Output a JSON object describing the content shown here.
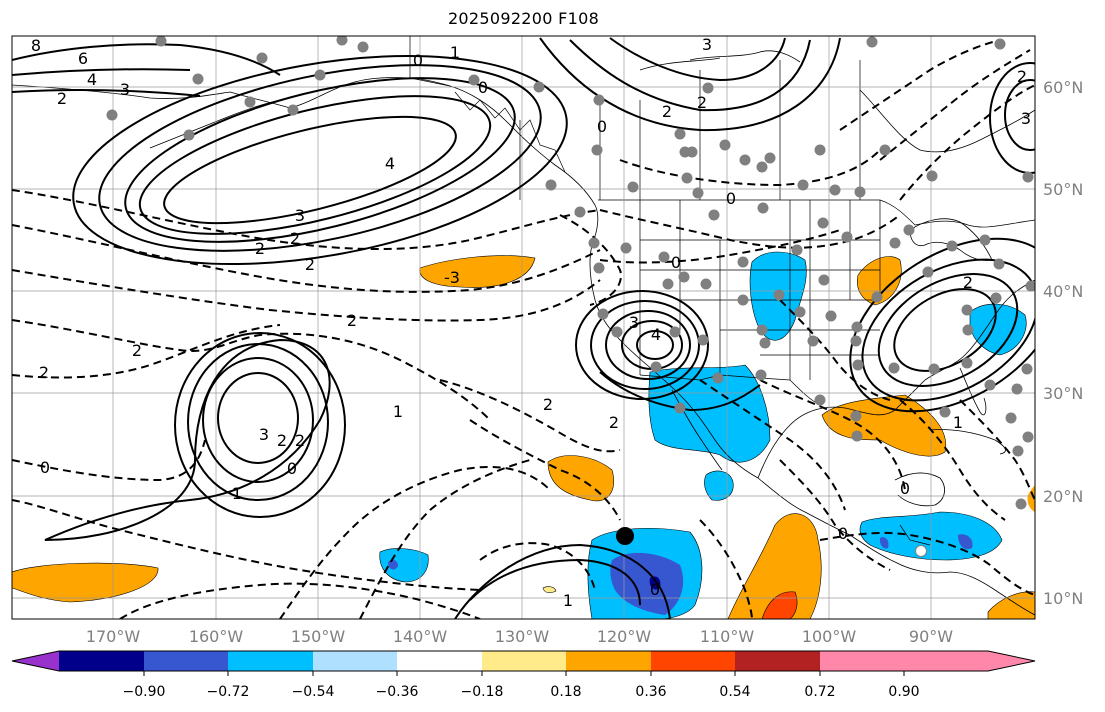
{
  "title": "2025092200 F108",
  "lon_labels": [
    "170°W",
    "160°W",
    "150°W",
    "140°W",
    "130°W",
    "120°W",
    "110°W",
    "100°W",
    "90°W"
  ],
  "lat_labels": [
    "10°N",
    "20°N",
    "30°N",
    "40°N",
    "50°N",
    "60°N"
  ],
  "colorbar": {
    "tick_labels": [
      "−0.90",
      "−0.72",
      "−0.54",
      "−0.36",
      "−0.18",
      "0.18",
      "0.36",
      "0.54",
      "0.72",
      "0.90"
    ],
    "colors": [
      "#9932cc",
      "#00008b",
      "#3657d0",
      "#00bfff",
      "#b0e0ff",
      "#ffffff",
      "#ffeb8a",
      "#ffa500",
      "#ff4500",
      "#b22222",
      "#ff88aa"
    ]
  },
  "fill_colors": {
    "neg_strong": "#00008b",
    "neg_mid": "#3657d0",
    "neg_weak": "#00bfff",
    "neg_faint": "#b0e0ff",
    "pos_weak": "#ffa500",
    "pos_mid": "#ff4500"
  },
  "contour_labels": [
    {
      "text": "8"
    },
    {
      "text": "6"
    },
    {
      "text": "4"
    },
    {
      "text": "3"
    },
    {
      "text": "2"
    },
    {
      "text": "4"
    },
    {
      "text": "3"
    },
    {
      "text": "2"
    },
    {
      "text": "2"
    },
    {
      "text": "-3"
    },
    {
      "text": "2"
    },
    {
      "text": "2"
    },
    {
      "text": "2"
    },
    {
      "text": "3"
    },
    {
      "text": "2"
    },
    {
      "text": "2"
    },
    {
      "text": "0"
    },
    {
      "text": "1"
    },
    {
      "text": "0"
    },
    {
      "text": "1"
    },
    {
      "text": "0"
    },
    {
      "text": "1"
    },
    {
      "text": "0"
    },
    {
      "text": "3"
    },
    {
      "text": "2"
    },
    {
      "text": "2"
    },
    {
      "text": "0"
    },
    {
      "text": "0"
    },
    {
      "text": "0"
    },
    {
      "text": "3"
    },
    {
      "text": "4"
    },
    {
      "text": "2"
    },
    {
      "text": "2"
    },
    {
      "text": "2"
    },
    {
      "text": "3"
    },
    {
      "text": "1"
    },
    {
      "text": "0"
    },
    {
      "text": "0"
    },
    {
      "text": "0"
    },
    {
      "text": "1"
    },
    {
      "text": "2"
    },
    {
      "text": "2"
    }
  ]
}
